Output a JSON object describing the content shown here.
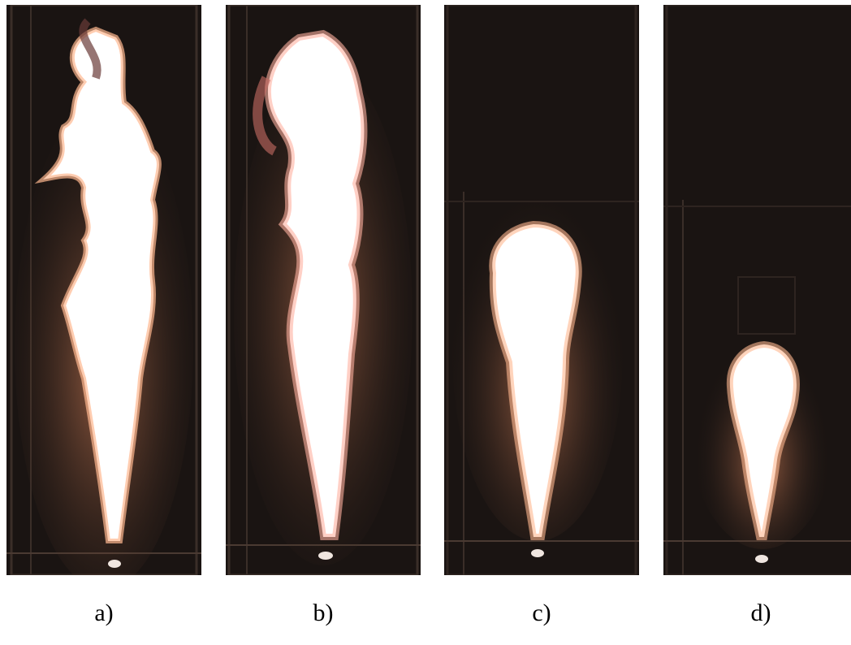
{
  "figure": {
    "panels": [
      {
        "label": "a)",
        "subject": "flame-photo",
        "flame_shape": "tall-turbulent"
      },
      {
        "label": "b)",
        "subject": "flame-photo",
        "flame_shape": "tall-turbulent"
      },
      {
        "label": "c)",
        "subject": "flame-photo",
        "flame_shape": "medium-bulb"
      },
      {
        "label": "d)",
        "subject": "flame-photo",
        "flame_shape": "short-bulb"
      }
    ],
    "colors": {
      "background": "#ffffff",
      "chamber": "#1a1412",
      "flame_core": "#ffffff",
      "flame_glow": "#ff9a6a",
      "flame_edge": "#c8504a"
    }
  }
}
